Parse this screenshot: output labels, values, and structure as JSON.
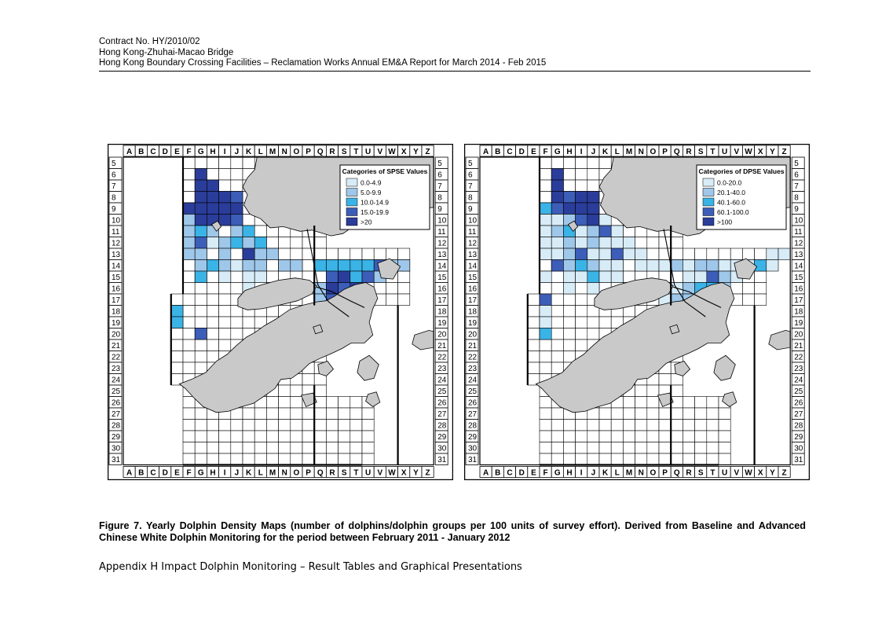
{
  "header": {
    "line1": "Contract No. HY/2010/02",
    "line2": "Hong Kong-Zhuhai-Macao Bridge",
    "line3": "Hong Kong Boundary Crossing Facilities – Reclamation Works   Annual EM&A Report for March 2014 - Feb 2015"
  },
  "grid": {
    "columns": [
      "A",
      "B",
      "C",
      "D",
      "E",
      "F",
      "G",
      "H",
      "I",
      "J",
      "K",
      "L",
      "M",
      "N",
      "O",
      "P",
      "Q",
      "R",
      "S",
      "T",
      "U",
      "V",
      "W",
      "X",
      "Y",
      "Z"
    ],
    "rows": [
      "5",
      "6",
      "7",
      "8",
      "9",
      "10",
      "11",
      "12",
      "13",
      "14",
      "15",
      "16",
      "17",
      "18",
      "19",
      "20",
      "21",
      "22",
      "23",
      "24",
      "25",
      "26",
      "27",
      "28",
      "29",
      "30",
      "31"
    ]
  },
  "colors": {
    "land": "#c9c9c9",
    "water": "#ffffff",
    "cat1": "#d8ecf7",
    "cat2": "#9ec7ea",
    "cat3": "#3ab3e6",
    "cat4": "#3c5db8",
    "cat5": "#2b3d9a"
  },
  "maps": [
    {
      "legend_title": "Categories of SPSE Values",
      "legend_items": [
        "0.0-4.9",
        "5.0-9.9",
        "10.0-14.9",
        "15.0-19.9",
        ">20"
      ],
      "cells": [
        [
          "G6",
          5
        ],
        [
          "G7",
          5
        ],
        [
          "H7",
          5
        ],
        [
          "G8",
          5
        ],
        [
          "H8",
          5
        ],
        [
          "I8",
          5
        ],
        [
          "J8",
          4
        ],
        [
          "F9",
          5
        ],
        [
          "G9",
          5
        ],
        [
          "H9",
          5
        ],
        [
          "I9",
          5
        ],
        [
          "J9",
          5
        ],
        [
          "F10",
          2
        ],
        [
          "G10",
          5
        ],
        [
          "H10",
          5
        ],
        [
          "I10",
          5
        ],
        [
          "J10",
          4
        ],
        [
          "F11",
          2
        ],
        [
          "G11",
          3
        ],
        [
          "H11",
          2
        ],
        [
          "J11",
          2
        ],
        [
          "K11",
          3
        ],
        [
          "F12",
          2
        ],
        [
          "G12",
          4
        ],
        [
          "H12",
          1
        ],
        [
          "I12",
          2
        ],
        [
          "J12",
          3
        ],
        [
          "K12",
          2
        ],
        [
          "L12",
          3
        ],
        [
          "F13",
          2
        ],
        [
          "G13",
          2
        ],
        [
          "I13",
          2
        ],
        [
          "K13",
          5
        ],
        [
          "L13",
          2
        ],
        [
          "M13",
          2
        ],
        [
          "G14",
          2
        ],
        [
          "H14",
          3
        ],
        [
          "I14",
          2
        ],
        [
          "J14",
          1
        ],
        [
          "K14",
          2
        ],
        [
          "L14",
          2
        ],
        [
          "N14",
          2
        ],
        [
          "O14",
          2
        ],
        [
          "Q14",
          3
        ],
        [
          "R14",
          3
        ],
        [
          "S14",
          3
        ],
        [
          "T14",
          3
        ],
        [
          "U14",
          3
        ],
        [
          "V14",
          4
        ],
        [
          "W14",
          2
        ],
        [
          "X14",
          2
        ],
        [
          "G15",
          3
        ],
        [
          "I15",
          1
        ],
        [
          "K15",
          1
        ],
        [
          "L15",
          1
        ],
        [
          "R15",
          4
        ],
        [
          "S15",
          5
        ],
        [
          "T15",
          3
        ],
        [
          "U15",
          4
        ],
        [
          "V15",
          2
        ],
        [
          "K16",
          1
        ],
        [
          "P16",
          2
        ],
        [
          "Q16",
          2
        ],
        [
          "R16",
          5
        ],
        [
          "S16",
          4
        ],
        [
          "T16",
          5
        ],
        [
          "Q17",
          2
        ],
        [
          "R17",
          4
        ],
        [
          "S17",
          4
        ],
        [
          "E18",
          3
        ],
        [
          "E19",
          3
        ],
        [
          "G20",
          4
        ]
      ]
    },
    {
      "legend_title": "Categories of DPSE Values",
      "legend_items": [
        "0.0-20.0",
        "20.1-40.0",
        "40.1-60.0",
        "60.1-100.0",
        ">100"
      ],
      "cells": [
        [
          "G6",
          5
        ],
        [
          "G7",
          5
        ],
        [
          "G8",
          5
        ],
        [
          "H8",
          4
        ],
        [
          "I8",
          5
        ],
        [
          "J8",
          5
        ],
        [
          "F9",
          3
        ],
        [
          "G9",
          4
        ],
        [
          "H9",
          5
        ],
        [
          "I9",
          5
        ],
        [
          "J9",
          5
        ],
        [
          "F10",
          1
        ],
        [
          "G10",
          1
        ],
        [
          "H10",
          2
        ],
        [
          "I10",
          4
        ],
        [
          "J10",
          5
        ],
        [
          "K10",
          1
        ],
        [
          "F11",
          1
        ],
        [
          "G11",
          2
        ],
        [
          "H11",
          3
        ],
        [
          "I11",
          1
        ],
        [
          "J11",
          2
        ],
        [
          "K11",
          4
        ],
        [
          "L11",
          1
        ],
        [
          "F12",
          1
        ],
        [
          "G12",
          1
        ],
        [
          "H12",
          2
        ],
        [
          "I12",
          1
        ],
        [
          "J12",
          2
        ],
        [
          "K12",
          1
        ],
        [
          "L12",
          1
        ],
        [
          "M12",
          1
        ],
        [
          "F13",
          1
        ],
        [
          "G13",
          1
        ],
        [
          "H13",
          2
        ],
        [
          "I13",
          4
        ],
        [
          "J13",
          1
        ],
        [
          "K13",
          1
        ],
        [
          "L13",
          4
        ],
        [
          "M13",
          1
        ],
        [
          "N13",
          1
        ],
        [
          "Y13",
          1
        ],
        [
          "Z13",
          1
        ],
        [
          "G14",
          4
        ],
        [
          "H14",
          2
        ],
        [
          "I14",
          3
        ],
        [
          "J14",
          2
        ],
        [
          "K14",
          1
        ],
        [
          "L14",
          1
        ],
        [
          "N14",
          1
        ],
        [
          "O14",
          1
        ],
        [
          "P14",
          1
        ],
        [
          "Q14",
          2
        ],
        [
          "R14",
          1
        ],
        [
          "S14",
          2
        ],
        [
          "T14",
          2
        ],
        [
          "U14",
          1
        ],
        [
          "V14",
          1
        ],
        [
          "W14",
          1
        ],
        [
          "X14",
          3
        ],
        [
          "Y14",
          1
        ],
        [
          "F15",
          1
        ],
        [
          "H15",
          1
        ],
        [
          "I15",
          1
        ],
        [
          "J15",
          3
        ],
        [
          "K15",
          1
        ],
        [
          "L15",
          1
        ],
        [
          "R15",
          1
        ],
        [
          "S15",
          1
        ],
        [
          "T15",
          4
        ],
        [
          "U15",
          2
        ],
        [
          "V15",
          1
        ],
        [
          "H16",
          1
        ],
        [
          "J16",
          1
        ],
        [
          "P16",
          1
        ],
        [
          "Q16",
          1
        ],
        [
          "R16",
          2
        ],
        [
          "S16",
          3
        ],
        [
          "T16",
          3
        ],
        [
          "U16",
          2
        ],
        [
          "F17",
          4
        ],
        [
          "P17",
          1
        ],
        [
          "Q17",
          2
        ],
        [
          "R17",
          2
        ],
        [
          "S17",
          3
        ],
        [
          "F18",
          1
        ],
        [
          "F19",
          1
        ],
        [
          "F20",
          3
        ]
      ]
    }
  ],
  "caption": "Figure 7.  Yearly Dolphin Density Maps (number of dolphins/dolphin groups per 100 units of survey effort).  Derived from Baseline and Advanced Chinese White Dolphin Monitoring for the period between February 2011 - January 2012",
  "footer": "Appendix H Impact Dolphin Monitoring – Result Tables and Graphical Presentations"
}
